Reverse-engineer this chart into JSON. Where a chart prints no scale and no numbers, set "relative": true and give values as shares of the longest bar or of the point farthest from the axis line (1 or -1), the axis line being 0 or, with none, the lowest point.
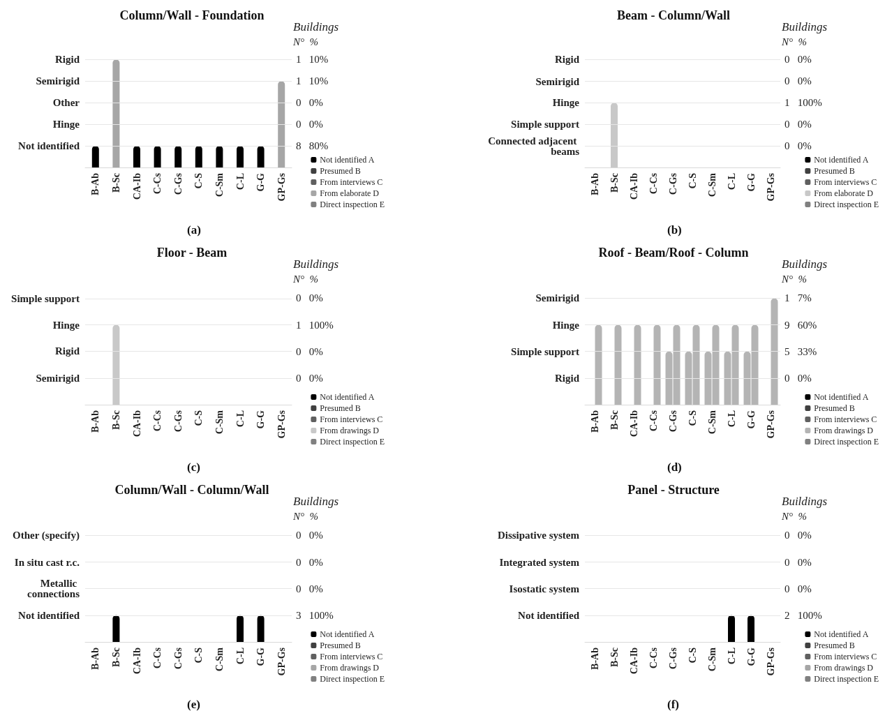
{
  "chart_data": [
    {
      "type": "bar",
      "title": "Column/Wall - Foundation",
      "relative": true,
      "annotations": [
        "Buildings",
        "N°  %",
        "(a)",
        "8   80%",
        "0   0%",
        "0   0%",
        "1   10%",
        "1   10%"
      ],
      "ref_lines": [
        {
          "axis": "y",
          "value": 0.2,
          "label": "Not identified",
          "color": "#e6e6e6"
        },
        {
          "axis": "y",
          "value": 0.4,
          "label": "Hinge",
          "color": "#e6e6e6"
        },
        {
          "axis": "y",
          "value": 0.6,
          "label": "Other",
          "color": "#e6e6e6"
        },
        {
          "axis": "y",
          "value": 0.8,
          "label": "Semirigid",
          "color": "#e6e6e6"
        },
        {
          "axis": "y",
          "value": 1,
          "label": "Rigid",
          "color": "#e6e6e6"
        }
      ],
      "categories": [
        "B-Ab",
        "B-Sc",
        "CA-Ib",
        "C-Cs",
        "C-Gs",
        "C-S",
        "C-Sm",
        "C-L",
        "G-G",
        "GP-Gs"
      ],
      "series": [
        {
          "name": "Not identified A",
          "color": "#000000",
          "values": [
            0.2,
            null,
            0.2,
            0.2,
            0.2,
            0.2,
            0.2,
            0.2,
            0.2,
            null
          ]
        },
        {
          "name": "Presumed B",
          "color": "#404040",
          "values": [
            null,
            null,
            null,
            null,
            null,
            null,
            null,
            null,
            null,
            null
          ]
        },
        {
          "name": "From interviews C",
          "color": "#606060",
          "values": [
            null,
            null,
            null,
            null,
            null,
            null,
            null,
            null,
            null,
            null
          ]
        },
        {
          "name": "From elaborate D",
          "color": "#a6a6a6",
          "values": [
            null,
            1,
            null,
            null,
            null,
            null,
            null,
            null,
            null,
            0.8
          ]
        },
        {
          "name": "Direct inspection E",
          "color": "#808080",
          "values": [
            null,
            null,
            null,
            null,
            null,
            null,
            null,
            null,
            null,
            null
          ]
        }
      ],
      "legend": "bottom right"
    },
    {
      "type": "bar",
      "title": "Beam - Column/Wall",
      "relative": true,
      "annotations": [
        "Buildings",
        "N°  %",
        "(b)",
        "0   0%",
        "0   0%",
        "1   100%",
        "0   0%",
        "0   0%"
      ],
      "ref_lines": [
        {
          "axis": "y",
          "value": 0.333,
          "label": "Connected adjacent beams",
          "color": "#e6e6e6"
        },
        {
          "axis": "y",
          "value": 0.667,
          "label": "Simple support",
          "color": "#e6e6e6"
        },
        {
          "axis": "y",
          "value": 1,
          "label": "Hinge",
          "color": "#e6e6e6"
        },
        {
          "axis": "y",
          "value": 1.333,
          "label": "Semirigid",
          "color": "#e6e6e6"
        },
        {
          "axis": "y",
          "value": 1.667,
          "label": "Rigid",
          "color": "#e6e6e6"
        }
      ],
      "categories": [
        "B-Ab",
        "B-Sc",
        "CA-Ib",
        "C-Cs",
        "C-Gs",
        "C-S",
        "C-Sm",
        "C-L",
        "G-G",
        "GP-Gs"
      ],
      "series": [
        {
          "name": "Not identified A",
          "color": "#000000",
          "values": [
            null,
            null,
            null,
            null,
            null,
            null,
            null,
            null,
            null,
            null
          ]
        },
        {
          "name": "Presumed B",
          "color": "#404040",
          "values": [
            null,
            null,
            null,
            null,
            null,
            null,
            null,
            null,
            null,
            null
          ]
        },
        {
          "name": "From interviews C",
          "color": "#606060",
          "values": [
            null,
            null,
            null,
            null,
            null,
            null,
            null,
            null,
            null,
            null
          ]
        },
        {
          "name": "From elaborate D",
          "color": "#c8c8c8",
          "values": [
            null,
            1,
            null,
            null,
            null,
            null,
            null,
            null,
            null,
            null
          ]
        },
        {
          "name": "Direct inspection E",
          "color": "#808080",
          "values": [
            null,
            null,
            null,
            null,
            null,
            null,
            null,
            null,
            null,
            null
          ]
        }
      ],
      "legend": "bottom right"
    },
    {
      "type": "bar",
      "title": "Floor - Beam",
      "relative": true,
      "annotations": [
        "Buildings",
        "N°  %",
        "(c)",
        "0   0%",
        "0   0%",
        "1   100%",
        "0   0%"
      ],
      "ref_lines": [
        {
          "axis": "y",
          "value": 0.333,
          "label": "Semirigid",
          "color": "#e6e6e6"
        },
        {
          "axis": "y",
          "value": 0.667,
          "label": "Rigid",
          "color": "#e6e6e6"
        },
        {
          "axis": "y",
          "value": 1,
          "label": "Hinge",
          "color": "#e6e6e6"
        },
        {
          "axis": "y",
          "value": 1.333,
          "label": "Simple support",
          "color": "#e6e6e6"
        }
      ],
      "categories": [
        "B-Ab",
        "B-Sc",
        "CA-Ib",
        "C-Cs",
        "C-Gs",
        "C-S",
        "C-Sm",
        "C-L",
        "G-G",
        "GP-Gs"
      ],
      "series": [
        {
          "name": "Not identified A",
          "color": "#000000",
          "values": [
            null,
            null,
            null,
            null,
            null,
            null,
            null,
            null,
            null,
            null
          ]
        },
        {
          "name": "Presumed B",
          "color": "#404040",
          "values": [
            null,
            null,
            null,
            null,
            null,
            null,
            null,
            null,
            null,
            null
          ]
        },
        {
          "name": "From interviews C",
          "color": "#606060",
          "values": [
            null,
            null,
            null,
            null,
            null,
            null,
            null,
            null,
            null,
            null
          ]
        },
        {
          "name": "From drawings D",
          "color": "#c8c8c8",
          "values": [
            null,
            1,
            null,
            null,
            null,
            null,
            null,
            null,
            null,
            null
          ]
        },
        {
          "name": "Direct inspection E",
          "color": "#808080",
          "values": [
            null,
            null,
            null,
            null,
            null,
            null,
            null,
            null,
            null,
            null
          ]
        }
      ],
      "legend": "bottom right"
    },
    {
      "type": "bar",
      "title": "Roof - Beam/Roof - Column",
      "relative": true,
      "annotations": [
        "Buildings",
        "N°  %",
        "(d)",
        "0   0%",
        "5   33%",
        "9   60%",
        "1   7%"
      ],
      "ref_lines": [
        {
          "axis": "y",
          "value": 0.25,
          "label": "Rigid",
          "color": "#e6e6e6"
        },
        {
          "axis": "y",
          "value": 0.5,
          "label": "Simple support",
          "color": "#e6e6e6"
        },
        {
          "axis": "y",
          "value": 0.75,
          "label": "Hinge",
          "color": "#e6e6e6"
        },
        {
          "axis": "y",
          "value": 1,
          "label": "Semirigid",
          "color": "#e6e6e6"
        }
      ],
      "categories": [
        "B-Ab",
        "B-Sc",
        "CA-Ib",
        "C-Cs",
        "C-Gs",
        "C-S",
        "C-Sm",
        "C-L",
        "G-G",
        "GP-Gs"
      ],
      "series": [
        {
          "color": "#b4b4b4",
          "values": [
            null,
            null,
            null,
            null,
            0.5,
            0.5,
            0.5,
            0.5,
            0.5,
            null
          ]
        },
        {
          "name": "Not identified A",
          "color": "#000000",
          "values": [
            null,
            null,
            null,
            null,
            null,
            null,
            null,
            null,
            null,
            null
          ]
        },
        {
          "name": "Presumed B",
          "color": "#404040",
          "values": [
            null,
            null,
            null,
            null,
            null,
            null,
            null,
            null,
            null,
            null
          ]
        },
        {
          "name": "From interviews C",
          "color": "#606060",
          "values": [
            null,
            null,
            null,
            null,
            null,
            null,
            null,
            null,
            null,
            null
          ]
        },
        {
          "name": "From drawings D",
          "color": "#b4b4b4",
          "values": [
            0.75,
            0.75,
            0.75,
            0.75,
            0.75,
            0.75,
            0.75,
            0.75,
            0.75,
            1
          ]
        },
        {
          "name": "Direct inspection E",
          "color": "#808080",
          "values": [
            null,
            null,
            null,
            null,
            null,
            null,
            null,
            null,
            null,
            null
          ]
        }
      ],
      "legend": "bottom right"
    },
    {
      "type": "bar",
      "title": "Column/Wall - Column/Wall",
      "relative": true,
      "annotations": [
        "Buildings",
        "N°  %",
        "(e)",
        "3   100%",
        "0   0%",
        "0   0%",
        "0   0%"
      ],
      "ref_lines": [
        {
          "axis": "y",
          "value": 1,
          "label": "Not identified",
          "color": "#e6e6e6"
        },
        {
          "axis": "y",
          "value": 2,
          "label": "Metallic connections",
          "color": "#e6e6e6"
        },
        {
          "axis": "y",
          "value": 3,
          "label": "In situ cast r.c.",
          "color": "#e6e6e6"
        },
        {
          "axis": "y",
          "value": 4,
          "label": "Other (specify)",
          "color": "#e6e6e6"
        }
      ],
      "categories": [
        "B-Ab",
        "B-Sc",
        "CA-Ib",
        "C-Cs",
        "C-Gs",
        "C-S",
        "C-Sm",
        "C-L",
        "G-G",
        "GP-Gs"
      ],
      "series": [
        {
          "name": "Not identified A",
          "color": "#000000",
          "values": [
            null,
            1,
            null,
            null,
            null,
            null,
            null,
            1,
            1,
            null
          ]
        },
        {
          "name": "Presumed B",
          "color": "#404040",
          "values": [
            null,
            null,
            null,
            null,
            null,
            null,
            null,
            null,
            null,
            null
          ]
        },
        {
          "name": "From interviews C",
          "color": "#606060",
          "values": [
            null,
            null,
            null,
            null,
            null,
            null,
            null,
            null,
            null,
            null
          ]
        },
        {
          "name": "From drawings D",
          "color": "#a6a6a6",
          "values": [
            null,
            null,
            null,
            null,
            null,
            null,
            null,
            null,
            null,
            null
          ]
        },
        {
          "name": "Direct inspection E",
          "color": "#808080",
          "values": [
            null,
            null,
            null,
            null,
            null,
            null,
            null,
            null,
            null,
            null
          ]
        }
      ],
      "legend": "bottom right"
    },
    {
      "type": "bar",
      "title": "Panel - Structure",
      "relative": true,
      "annotations": [
        "Buildings",
        "N°  %",
        "(f)",
        "2   100%",
        "0   0%",
        "0   0%",
        "0   0%"
      ],
      "ref_lines": [
        {
          "axis": "y",
          "value": 1,
          "label": "Not identified",
          "color": "#e6e6e6"
        },
        {
          "axis": "y",
          "value": 2,
          "label": "Isostatic system",
          "color": "#e6e6e6"
        },
        {
          "axis": "y",
          "value": 3,
          "label": "Integrated system",
          "color": "#e6e6e6"
        },
        {
          "axis": "y",
          "value": 4,
          "label": "Dissipative system",
          "color": "#e6e6e6"
        }
      ],
      "categories": [
        "B-Ab",
        "B-Sc",
        "CA-Ib",
        "C-Cs",
        "C-Gs",
        "C-S",
        "C-Sm",
        "C-L",
        "G-G",
        "GP-Gs"
      ],
      "series": [
        {
          "name": "Not identified A",
          "color": "#000000",
          "values": [
            null,
            null,
            null,
            null,
            null,
            null,
            null,
            1,
            1,
            null
          ]
        },
        {
          "name": "Presumed B",
          "color": "#404040",
          "values": [
            null,
            null,
            null,
            null,
            null,
            null,
            null,
            null,
            null,
            null
          ]
        },
        {
          "name": "From interviews C",
          "color": "#606060",
          "values": [
            null,
            null,
            null,
            null,
            null,
            null,
            null,
            null,
            null,
            null
          ]
        },
        {
          "name": "From drawings D",
          "color": "#a6a6a6",
          "values": [
            null,
            null,
            null,
            null,
            null,
            null,
            null,
            null,
            null,
            null
          ]
        },
        {
          "name": "Direct inspection E",
          "color": "#808080",
          "values": [
            null,
            null,
            null,
            null,
            null,
            null,
            null,
            null,
            null,
            null
          ]
        }
      ],
      "legend": "bottom right"
    }
  ]
}
